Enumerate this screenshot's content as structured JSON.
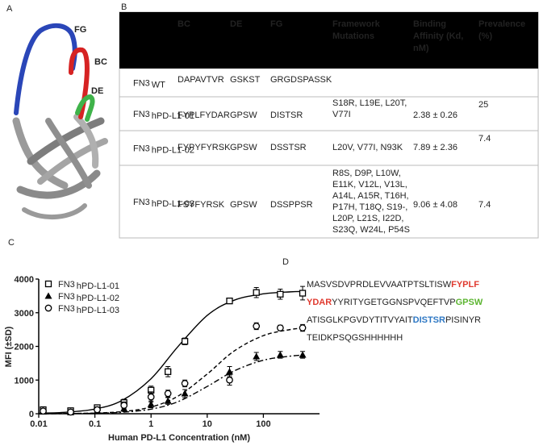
{
  "panel_a": {
    "label": "A",
    "loops": [
      "FG",
      "BC",
      "DE"
    ]
  },
  "panel_b": {
    "label": "B",
    "header": [
      [
        "BC"
      ],
      [
        "DE"
      ],
      [
        "FG"
      ],
      [
        "Framework",
        "Mutations"
      ],
      [
        "Binding",
        "Affinity (Kd,",
        "nM)"
      ],
      [
        "Prevalence",
        "(%)"
      ]
    ],
    "rows": [
      {
        "name": "FN3",
        "sub": "WT",
        "cells": [
          [
            "DAPAVTVR"
          ],
          [
            "GSKST"
          ],
          [
            "GRGDSPASSK"
          ]
        ]
      },
      {
        "name": "FN3",
        "sub": "hPD-L1-01",
        "cells": [
          [
            "FYPLFYDAR"
          ],
          [
            "GPSW"
          ],
          [
            "DISTSR"
          ],
          [
            "S18R, L19E, L20T,",
            "V77I"
          ],
          [
            "2.38 ± 0.26"
          ],
          [
            "25"
          ]
        ]
      },
      {
        "name": "FN3",
        "sub": "hPD-L1-02",
        "cells": [
          [
            "FYPYFYRSK"
          ],
          [
            "GPSW"
          ],
          [
            "DSSTSR"
          ],
          [
            "L20V, V77I, N93K"
          ],
          [
            "7.89 ± 2.36"
          ],
          [
            "7.4"
          ]
        ]
      },
      {
        "name": "FN3",
        "sub": "hPD-L1-03",
        "cells": [
          [
            "FSYFYRSK"
          ],
          [
            "GPSW"
          ],
          [
            "DSSPPSR"
          ],
          [
            "R8S, D9P, L10W,",
            "E11K, V12L, V13L,",
            "A14L, A15R, T16H,",
            "P17H, T18Q, S19-,",
            "L20P, L21S, I22D,",
            "S23Q, W24L, P54S"
          ],
          [
            "9.06 ± 4.08"
          ],
          [
            "7.4"
          ]
        ]
      }
    ]
  },
  "panel_c": {
    "label": "C"
  },
  "chart_data": {
    "type": "scatter",
    "y_label": "MFI (±SD)",
    "x_label": "Human PD-L1 Concentration (nM)",
    "log_x": true,
    "xlim": [
      0.01,
      1000
    ],
    "xticks": [
      0.01,
      0.1,
      1,
      10,
      100
    ],
    "ylim": [
      0,
      4000
    ],
    "yticks": [
      0,
      1000,
      2000,
      3000,
      4000
    ],
    "x": [
      0.012,
      0.037,
      0.11,
      0.33,
      1,
      2,
      4,
      25,
      75,
      200,
      500
    ],
    "fit_x": [
      0.01,
      0.03,
      0.1,
      0.3,
      1,
      3,
      10,
      30,
      100,
      300,
      500
    ],
    "legend": "upper left",
    "series": [
      {
        "name": "FN3",
        "sub": "hPD-L1-01",
        "marker": "square",
        "line_style": "solid",
        "color": "#000000",
        "values": [
          120,
          90,
          180,
          330,
          700,
          1250,
          2150,
          3350,
          3600,
          3550,
          3580
        ],
        "errors": [
          60,
          50,
          80,
          100,
          120,
          150,
          100,
          80,
          150,
          150,
          200
        ],
        "fit": [
          15,
          43,
          140,
          390,
          1040,
          1990,
          2920,
          3370,
          3560,
          3620,
          3630
        ]
      },
      {
        "name": "FN3",
        "sub": "hPD-L1-02",
        "marker": "triangle",
        "line_style": "dashdot",
        "color": "#000000",
        "values": [
          60,
          40,
          80,
          150,
          280,
          380,
          600,
          1250,
          1700,
          1750,
          1750
        ],
        "errors": [
          50,
          50,
          60,
          80,
          100,
          100,
          120,
          150,
          120,
          100,
          100
        ],
        "fit": [
          1,
          4,
          15,
          43,
          137,
          356,
          810,
          1270,
          1590,
          1710,
          1740
        ]
      },
      {
        "name": "FN3",
        "sub": "hPD-L1-03",
        "marker": "circle",
        "line_style": "dashed",
        "color": "#000000",
        "values": [
          80,
          50,
          120,
          250,
          500,
          600,
          900,
          1000,
          2600,
          2550,
          2550
        ],
        "errors": [
          50,
          50,
          80,
          100,
          150,
          100,
          100,
          150,
          100,
          80,
          100
        ],
        "fit": [
          2,
          6,
          21,
          63,
          200,
          520,
          1180,
          1860,
          2320,
          2500,
          2540
        ]
      }
    ]
  },
  "panel_d": {
    "label": "D",
    "lines": [
      [
        {
          "text": "MASVSDVPRDLEVVAATPTSLTISW",
          "color": "#222222"
        },
        {
          "text": "FYPLF",
          "color": "#e03a2f"
        }
      ],
      [
        {
          "text": "YDAR",
          "color": "#e03a2f"
        },
        {
          "text": "YYRITYGETGGNSPVQEFTVP",
          "color": "#222222"
        },
        {
          "text": "GPSW",
          "color": "#5cb531"
        }
      ],
      [
        {
          "text": "ATISGLKPGVDYTITVYAIT",
          "color": "#222222"
        },
        {
          "text": "DISTSR",
          "color": "#2f78c4"
        },
        {
          "text": "PISINYR",
          "color": "#222222"
        }
      ],
      [
        {
          "text": "TEIDKPSQGSHHHHHH",
          "color": "#222222"
        }
      ]
    ]
  }
}
